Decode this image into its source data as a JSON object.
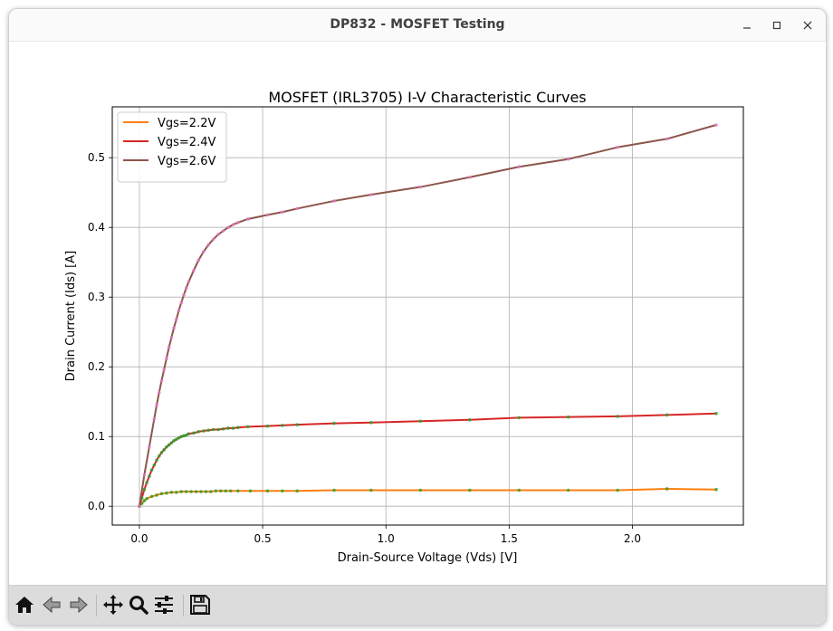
{
  "window": {
    "title": "DP832 - MOSFET Testing"
  },
  "toolbar": {
    "buttons": [
      {
        "name": "home-icon",
        "label": "Home"
      },
      {
        "name": "back-icon",
        "label": "Back"
      },
      {
        "name": "forward-icon",
        "label": "Forward"
      },
      {
        "name": "pan-icon",
        "label": "Pan"
      },
      {
        "name": "zoom-icon",
        "label": "Zoom"
      },
      {
        "name": "configure-subplots-icon",
        "label": "Configure subplots"
      },
      {
        "name": "save-icon",
        "label": "Save"
      }
    ]
  },
  "chart_data": {
    "type": "line",
    "title": "MOSFET (IRL3705) I-V Characteristic Curves",
    "xlabel": "Drain-Source Voltage (Vds) [V]",
    "ylabel": "Drain Current (Ids) [A]",
    "xlim": [
      -0.11,
      2.45
    ],
    "ylim": [
      -0.027,
      0.573
    ],
    "xticks": [
      0.0,
      0.5,
      1.0,
      1.5,
      2.0
    ],
    "xtick_labels": [
      "0.0",
      "0.5",
      "1.0",
      "1.5",
      "2.0"
    ],
    "yticks": [
      0.0,
      0.1,
      0.2,
      0.3,
      0.4,
      0.5
    ],
    "ytick_labels": [
      "0.0",
      "0.1",
      "0.2",
      "0.3",
      "0.4",
      "0.5"
    ],
    "grid": true,
    "legend_position": "upper-left",
    "series": [
      {
        "name": "Vgs=2.2V",
        "color": "#ff7f0e",
        "marker_color": "#2ca02c",
        "x": [
          0.0,
          0.01,
          0.02,
          0.03,
          0.05,
          0.07,
          0.09,
          0.11,
          0.13,
          0.15,
          0.17,
          0.19,
          0.21,
          0.23,
          0.25,
          0.27,
          0.29,
          0.31,
          0.33,
          0.35,
          0.37,
          0.4,
          0.45,
          0.52,
          0.58,
          0.64,
          0.79,
          0.94,
          1.14,
          1.34,
          1.54,
          1.74,
          1.94,
          2.14,
          2.34
        ],
        "y": [
          0.0,
          0.004,
          0.008,
          0.011,
          0.014,
          0.016,
          0.018,
          0.019,
          0.02,
          0.02,
          0.021,
          0.021,
          0.021,
          0.021,
          0.021,
          0.021,
          0.021,
          0.022,
          0.022,
          0.022,
          0.022,
          0.022,
          0.022,
          0.022,
          0.022,
          0.022,
          0.023,
          0.023,
          0.023,
          0.023,
          0.023,
          0.023,
          0.023,
          0.025,
          0.024
        ]
      },
      {
        "name": "Vgs=2.4V",
        "color": "#d62728",
        "marker_color": "#2ca02c",
        "x": [
          0.0,
          0.01,
          0.02,
          0.03,
          0.04,
          0.05,
          0.06,
          0.07,
          0.08,
          0.09,
          0.1,
          0.11,
          0.12,
          0.13,
          0.14,
          0.15,
          0.16,
          0.17,
          0.18,
          0.19,
          0.2,
          0.22,
          0.24,
          0.26,
          0.28,
          0.3,
          0.32,
          0.34,
          0.36,
          0.38,
          0.4,
          0.44,
          0.52,
          0.58,
          0.64,
          0.79,
          0.94,
          1.14,
          1.34,
          1.54,
          1.74,
          1.94,
          2.14,
          2.34
        ],
        "y": [
          0.0,
          0.012,
          0.024,
          0.034,
          0.043,
          0.052,
          0.059,
          0.066,
          0.072,
          0.077,
          0.081,
          0.085,
          0.088,
          0.091,
          0.094,
          0.096,
          0.098,
          0.1,
          0.101,
          0.102,
          0.104,
          0.105,
          0.107,
          0.108,
          0.109,
          0.11,
          0.11,
          0.111,
          0.112,
          0.112,
          0.113,
          0.114,
          0.115,
          0.116,
          0.117,
          0.119,
          0.12,
          0.122,
          0.124,
          0.127,
          0.128,
          0.129,
          0.131,
          0.133
        ]
      },
      {
        "name": "Vgs=2.6V",
        "color": "#8c564b",
        "marker_color": "#e377c2",
        "x": [
          0.0,
          0.02,
          0.04,
          0.06,
          0.07,
          0.08,
          0.09,
          0.1,
          0.11,
          0.12,
          0.13,
          0.14,
          0.15,
          0.16,
          0.17,
          0.18,
          0.19,
          0.2,
          0.22,
          0.24,
          0.26,
          0.28,
          0.3,
          0.32,
          0.34,
          0.36,
          0.38,
          0.4,
          0.44,
          0.52,
          0.58,
          0.64,
          0.79,
          0.94,
          1.14,
          1.34,
          1.54,
          1.74,
          1.94,
          2.14,
          2.34
        ],
        "y": [
          0.0,
          0.045,
          0.085,
          0.125,
          0.145,
          0.163,
          0.18,
          0.196,
          0.212,
          0.228,
          0.242,
          0.256,
          0.268,
          0.281,
          0.292,
          0.303,
          0.313,
          0.322,
          0.338,
          0.353,
          0.365,
          0.375,
          0.383,
          0.39,
          0.395,
          0.4,
          0.404,
          0.407,
          0.412,
          0.418,
          0.422,
          0.427,
          0.438,
          0.447,
          0.458,
          0.472,
          0.487,
          0.498,
          0.515,
          0.527,
          0.547
        ]
      }
    ]
  }
}
